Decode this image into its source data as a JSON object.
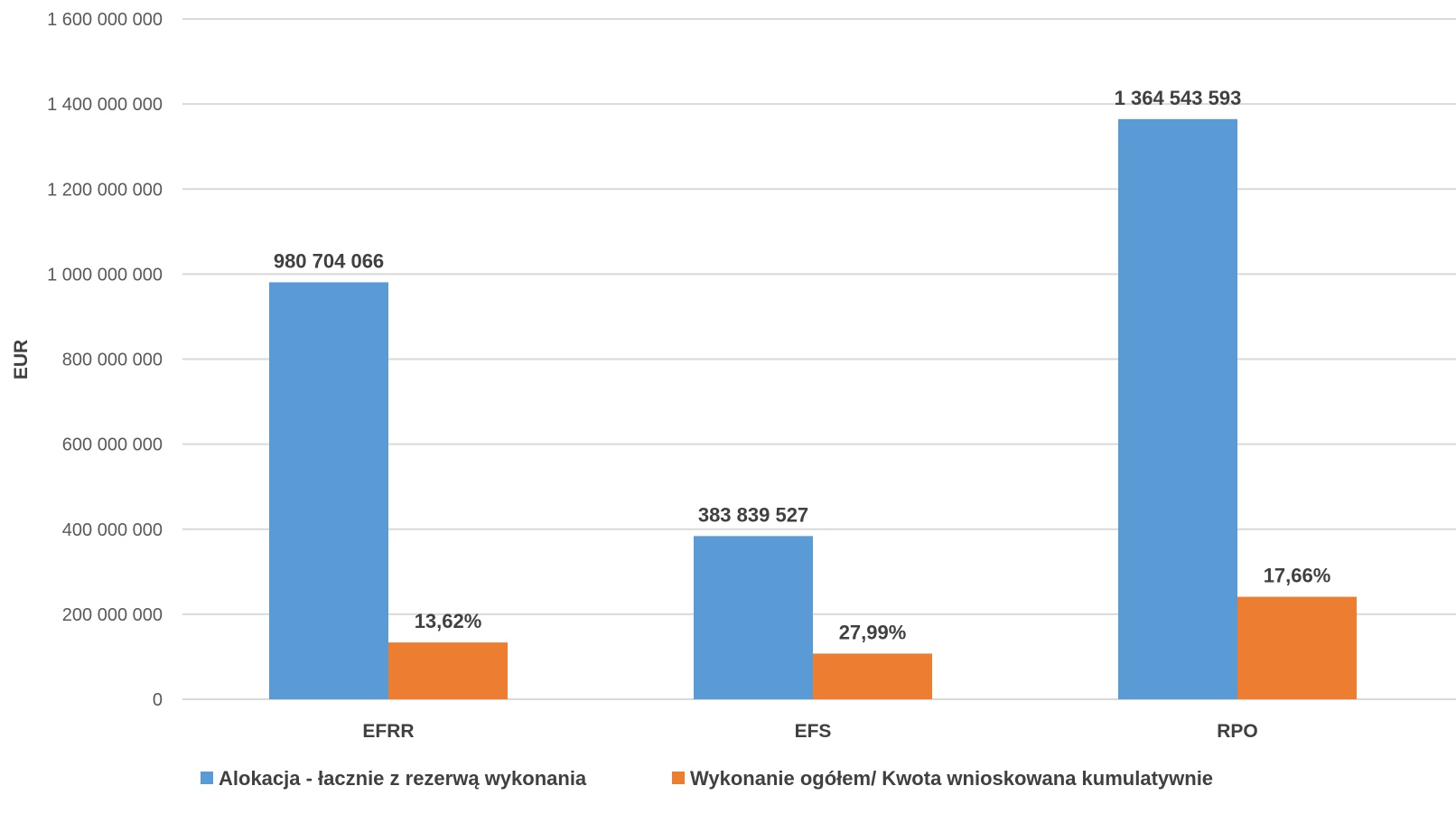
{
  "chart_data": {
    "type": "bar",
    "title": "",
    "xlabel": "",
    "ylabel": "EUR",
    "ylim": [
      0,
      1600000000
    ],
    "yticks": [
      0,
      200000000,
      400000000,
      600000000,
      800000000,
      1000000000,
      1200000000,
      1400000000,
      1600000000
    ],
    "ytick_labels": [
      "0",
      "200 000 000",
      "400 000 000",
      "600 000 000",
      "800 000 000",
      "1 000 000 000",
      "1 200 000 000",
      "1 400 000 000",
      "1 600 000 000"
    ],
    "categories": [
      "EFRR",
      "EFS",
      "RPO"
    ],
    "series": [
      {
        "name": "Alokacja - łacznie z rezerwą wykonania",
        "color": "#5b9bd5",
        "values": [
          980704066,
          383839527,
          1364543593
        ],
        "data_labels": [
          "980 704 066",
          "383 839 527",
          "1 364 543 593"
        ]
      },
      {
        "name": "Wykonanie ogółem/ Kwota wnioskowana kumulatywnie",
        "color": "#ed7d31",
        "values": [
          133572000,
          107436000,
          240978000
        ],
        "data_labels": [
          "13,62%",
          "27,99%",
          "17,66%"
        ]
      }
    ],
    "grid": true,
    "legend": "bottom"
  }
}
